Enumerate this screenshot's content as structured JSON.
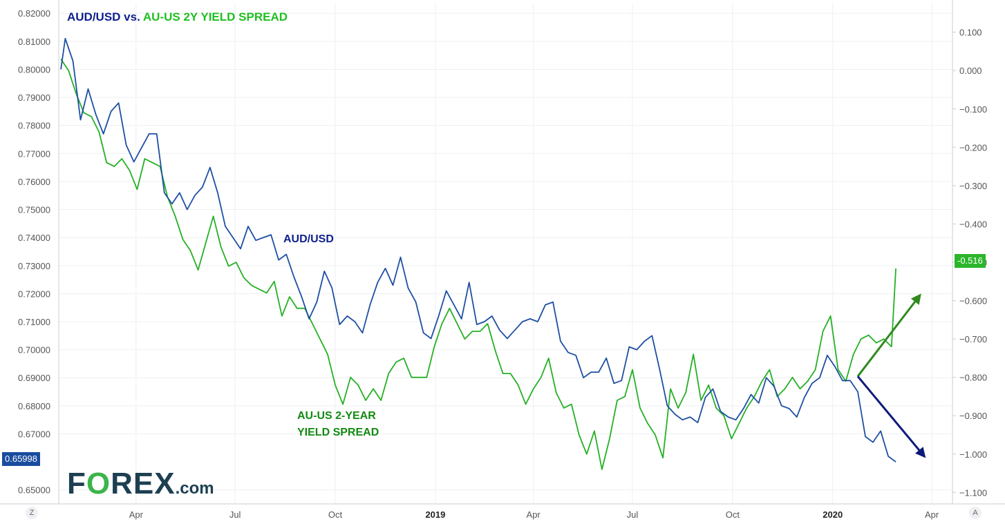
{
  "title": {
    "part1": "AUD/USD",
    "part2": " vs. ",
    "part3": "AU-US 2Y YIELD SPREAD"
  },
  "labels": {
    "aud": "AUD/USD",
    "spread_line1": "AU-US 2-YEAR",
    "spread_line2": "YIELD SPREAD"
  },
  "logo": {
    "part1": "F",
    "part2": "O",
    "part3": "REX",
    "part4": ".com"
  },
  "corners": {
    "left": "Z",
    "right": "A"
  },
  "last_values": {
    "aud": "0.65998",
    "spread": "-0.516"
  },
  "colors": {
    "aud": "#1d4fa3",
    "spread": "#24b024",
    "aud_arrow": "#0d1a7a",
    "spread_arrow": "#2f8a1e",
    "aud_badge": "#1a4c9e",
    "spread_badge": "#2bb52b"
  },
  "chart_data": {
    "type": "line",
    "title": "AUD/USD vs. AU-US 2Y YIELD SPREAD",
    "x_axis": {
      "ticks": [
        {
          "label": "Apr",
          "date": "2018-04-01"
        },
        {
          "label": "Jul",
          "date": "2018-07-01"
        },
        {
          "label": "Oct",
          "date": "2018-10-01"
        },
        {
          "label": "2019",
          "date": "2019-01-01",
          "bold": true
        },
        {
          "label": "Apr",
          "date": "2019-04-01"
        },
        {
          "label": "Jul",
          "date": "2019-07-01"
        },
        {
          "label": "Oct",
          "date": "2019-10-01"
        },
        {
          "label": "2020",
          "date": "2020-01-01",
          "bold": true
        },
        {
          "label": "Apr",
          "date": "2020-04-01"
        }
      ],
      "range": [
        "2018-01-20",
        "2020-04-20"
      ]
    },
    "y_left": {
      "label": "AUD/USD",
      "range": [
        0.645,
        0.8235
      ],
      "ticks": [
        "0.82000",
        "0.81000",
        "0.80000",
        "0.79000",
        "0.78000",
        "0.77000",
        "0.76000",
        "0.75000",
        "0.74000",
        "0.73000",
        "0.72000",
        "0.71000",
        "0.70000",
        "0.69000",
        "0.68000",
        "0.67000",
        "0.65000"
      ]
    },
    "y_right": {
      "label": "AU-US 2Y yield spread",
      "range": [
        -1.13,
        0.175
      ],
      "ticks": [
        "0.100",
        "0.000",
        "-0.100",
        "-0.200",
        "-0.300",
        "-0.400",
        "-0.500",
        "-0.600",
        "-0.700",
        "-0.800",
        "-0.900",
        "-1.000",
        "-1.100"
      ]
    },
    "grid": true,
    "series": [
      {
        "name": "AUD/USD",
        "axis": "left",
        "points": [
          [
            "2018-01-22",
            0.8
          ],
          [
            "2018-01-26",
            0.811
          ],
          [
            "2018-02-02",
            0.803
          ],
          [
            "2018-02-09",
            0.782
          ],
          [
            "2018-02-16",
            0.793
          ],
          [
            "2018-02-23",
            0.784
          ],
          [
            "2018-03-02",
            0.777
          ],
          [
            "2018-03-09",
            0.785
          ],
          [
            "2018-03-16",
            0.788
          ],
          [
            "2018-03-23",
            0.773
          ],
          [
            "2018-03-30",
            0.767
          ],
          [
            "2018-04-06",
            0.772
          ],
          [
            "2018-04-13",
            0.777
          ],
          [
            "2018-04-20",
            0.777
          ],
          [
            "2018-04-27",
            0.756
          ],
          [
            "2018-05-04",
            0.752
          ],
          [
            "2018-05-11",
            0.756
          ],
          [
            "2018-05-18",
            0.75
          ],
          [
            "2018-05-25",
            0.755
          ],
          [
            "2018-06-01",
            0.758
          ],
          [
            "2018-06-08",
            0.765
          ],
          [
            "2018-06-15",
            0.756
          ],
          [
            "2018-06-22",
            0.744
          ],
          [
            "2018-06-29",
            0.74
          ],
          [
            "2018-07-06",
            0.736
          ],
          [
            "2018-07-13",
            0.744
          ],
          [
            "2018-07-20",
            0.739
          ],
          [
            "2018-07-27",
            0.74
          ],
          [
            "2018-08-03",
            0.741
          ],
          [
            "2018-08-10",
            0.732
          ],
          [
            "2018-08-17",
            0.734
          ],
          [
            "2018-08-24",
            0.726
          ],
          [
            "2018-08-31",
            0.719
          ],
          [
            "2018-09-07",
            0.711
          ],
          [
            "2018-09-14",
            0.717
          ],
          [
            "2018-09-21",
            0.728
          ],
          [
            "2018-09-28",
            0.722
          ],
          [
            "2018-10-05",
            0.709
          ],
          [
            "2018-10-12",
            0.712
          ],
          [
            "2018-10-19",
            0.71
          ],
          [
            "2018-10-26",
            0.706
          ],
          [
            "2018-11-02",
            0.716
          ],
          [
            "2018-11-09",
            0.724
          ],
          [
            "2018-11-16",
            0.729
          ],
          [
            "2018-11-23",
            0.723
          ],
          [
            "2018-11-30",
            0.733
          ],
          [
            "2018-12-07",
            0.722
          ],
          [
            "2018-12-14",
            0.717
          ],
          [
            "2018-12-21",
            0.706
          ],
          [
            "2018-12-28",
            0.704
          ],
          [
            "2019-01-04",
            0.712
          ],
          [
            "2019-01-11",
            0.721
          ],
          [
            "2019-01-18",
            0.716
          ],
          [
            "2019-01-25",
            0.711
          ],
          [
            "2019-02-01",
            0.724
          ],
          [
            "2019-02-08",
            0.709
          ],
          [
            "2019-02-15",
            0.71
          ],
          [
            "2019-02-22",
            0.712
          ],
          [
            "2019-03-01",
            0.707
          ],
          [
            "2019-03-08",
            0.704
          ],
          [
            "2019-03-15",
            0.707
          ],
          [
            "2019-03-22",
            0.71
          ],
          [
            "2019-03-29",
            0.711
          ],
          [
            "2019-04-05",
            0.71
          ],
          [
            "2019-04-12",
            0.716
          ],
          [
            "2019-04-19",
            0.717
          ],
          [
            "2019-04-26",
            0.703
          ],
          [
            "2019-05-03",
            0.699
          ],
          [
            "2019-05-10",
            0.698
          ],
          [
            "2019-05-17",
            0.69
          ],
          [
            "2019-05-24",
            0.692
          ],
          [
            "2019-05-31",
            0.692
          ],
          [
            "2019-06-07",
            0.697
          ],
          [
            "2019-06-14",
            0.688
          ],
          [
            "2019-06-21",
            0.689
          ],
          [
            "2019-06-28",
            0.701
          ],
          [
            "2019-07-05",
            0.7
          ],
          [
            "2019-07-12",
            0.703
          ],
          [
            "2019-07-19",
            0.705
          ],
          [
            "2019-07-26",
            0.693
          ],
          [
            "2019-08-02",
            0.68
          ],
          [
            "2019-08-09",
            0.677
          ],
          [
            "2019-08-16",
            0.675
          ],
          [
            "2019-08-23",
            0.676
          ],
          [
            "2019-08-30",
            0.674
          ],
          [
            "2019-09-06",
            0.683
          ],
          [
            "2019-09-13",
            0.686
          ],
          [
            "2019-09-20",
            0.678
          ],
          [
            "2019-09-27",
            0.676
          ],
          [
            "2019-10-04",
            0.675
          ],
          [
            "2019-10-11",
            0.679
          ],
          [
            "2019-10-18",
            0.684
          ],
          [
            "2019-10-25",
            0.681
          ],
          [
            "2019-11-01",
            0.69
          ],
          [
            "2019-11-08",
            0.687
          ],
          [
            "2019-11-15",
            0.68
          ],
          [
            "2019-11-22",
            0.679
          ],
          [
            "2019-11-29",
            0.676
          ],
          [
            "2019-12-06",
            0.683
          ],
          [
            "2019-12-13",
            0.688
          ],
          [
            "2019-12-20",
            0.69
          ],
          [
            "2019-12-27",
            0.698
          ],
          [
            "2020-01-03",
            0.694
          ],
          [
            "2020-01-10",
            0.689
          ],
          [
            "2020-01-17",
            0.689
          ],
          [
            "2020-01-24",
            0.685
          ],
          [
            "2020-01-31",
            0.669
          ],
          [
            "2020-02-07",
            0.667
          ],
          [
            "2020-02-14",
            0.671
          ],
          [
            "2020-02-21",
            0.662
          ],
          [
            "2020-02-28",
            0.65998
          ]
        ]
      },
      {
        "name": "AU-US 2Y yield spread",
        "axis": "right",
        "points": [
          [
            "2018-01-22",
            0.03
          ],
          [
            "2018-01-29",
            0.0
          ],
          [
            "2018-02-05",
            -0.06
          ],
          [
            "2018-02-12",
            -0.11
          ],
          [
            "2018-02-19",
            -0.12
          ],
          [
            "2018-02-26",
            -0.16
          ],
          [
            "2018-03-05",
            -0.24
          ],
          [
            "2018-03-12",
            -0.25
          ],
          [
            "2018-03-19",
            -0.23
          ],
          [
            "2018-03-26",
            -0.26
          ],
          [
            "2018-04-02",
            -0.31
          ],
          [
            "2018-04-09",
            -0.23
          ],
          [
            "2018-04-16",
            -0.24
          ],
          [
            "2018-04-23",
            -0.25
          ],
          [
            "2018-04-30",
            -0.33
          ],
          [
            "2018-05-07",
            -0.38
          ],
          [
            "2018-05-14",
            -0.44
          ],
          [
            "2018-05-21",
            -0.47
          ],
          [
            "2018-05-28",
            -0.52
          ],
          [
            "2018-06-04",
            -0.45
          ],
          [
            "2018-06-11",
            -0.38
          ],
          [
            "2018-06-18",
            -0.46
          ],
          [
            "2018-06-25",
            -0.51
          ],
          [
            "2018-07-02",
            -0.5
          ],
          [
            "2018-07-09",
            -0.54
          ],
          [
            "2018-07-16",
            -0.56
          ],
          [
            "2018-07-23",
            -0.57
          ],
          [
            "2018-07-30",
            -0.58
          ],
          [
            "2018-08-06",
            -0.55
          ],
          [
            "2018-08-13",
            -0.64
          ],
          [
            "2018-08-20",
            -0.59
          ],
          [
            "2018-08-27",
            -0.62
          ],
          [
            "2018-09-03",
            -0.62
          ],
          [
            "2018-09-10",
            -0.66
          ],
          [
            "2018-09-17",
            -0.7
          ],
          [
            "2018-09-24",
            -0.74
          ],
          [
            "2018-10-01",
            -0.82
          ],
          [
            "2018-10-08",
            -0.87
          ],
          [
            "2018-10-15",
            -0.8
          ],
          [
            "2018-10-22",
            -0.82
          ],
          [
            "2018-10-29",
            -0.86
          ],
          [
            "2018-11-05",
            -0.83
          ],
          [
            "2018-11-12",
            -0.86
          ],
          [
            "2018-11-19",
            -0.79
          ],
          [
            "2018-11-26",
            -0.76
          ],
          [
            "2018-12-03",
            -0.75
          ],
          [
            "2018-12-10",
            -0.8
          ],
          [
            "2018-12-17",
            -0.8
          ],
          [
            "2018-12-24",
            -0.8
          ],
          [
            "2018-12-31",
            -0.72
          ],
          [
            "2019-01-07",
            -0.66
          ],
          [
            "2019-01-14",
            -0.62
          ],
          [
            "2019-01-21",
            -0.66
          ],
          [
            "2019-01-28",
            -0.7
          ],
          [
            "2019-02-04",
            -0.68
          ],
          [
            "2019-02-11",
            -0.68
          ],
          [
            "2019-02-18",
            -0.66
          ],
          [
            "2019-02-25",
            -0.73
          ],
          [
            "2019-03-04",
            -0.79
          ],
          [
            "2019-03-11",
            -0.79
          ],
          [
            "2019-03-18",
            -0.82
          ],
          [
            "2019-03-25",
            -0.87
          ],
          [
            "2019-04-01",
            -0.83
          ],
          [
            "2019-04-08",
            -0.8
          ],
          [
            "2019-04-15",
            -0.75
          ],
          [
            "2019-04-22",
            -0.84
          ],
          [
            "2019-04-29",
            -0.88
          ],
          [
            "2019-05-06",
            -0.87
          ],
          [
            "2019-05-13",
            -0.95
          ],
          [
            "2019-05-20",
            -1.0
          ],
          [
            "2019-05-27",
            -0.94
          ],
          [
            "2019-06-03",
            -1.04
          ],
          [
            "2019-06-10",
            -0.96
          ],
          [
            "2019-06-17",
            -0.86
          ],
          [
            "2019-06-24",
            -0.85
          ],
          [
            "2019-07-01",
            -0.78
          ],
          [
            "2019-07-08",
            -0.88
          ],
          [
            "2019-07-15",
            -0.92
          ],
          [
            "2019-07-22",
            -0.95
          ],
          [
            "2019-07-29",
            -1.01
          ],
          [
            "2019-08-05",
            -0.83
          ],
          [
            "2019-08-12",
            -0.88
          ],
          [
            "2019-08-19",
            -0.84
          ],
          [
            "2019-08-26",
            -0.74
          ],
          [
            "2019-09-02",
            -0.86
          ],
          [
            "2019-09-09",
            -0.82
          ],
          [
            "2019-09-16",
            -0.88
          ],
          [
            "2019-09-23",
            -0.9
          ],
          [
            "2019-09-30",
            -0.96
          ],
          [
            "2019-10-07",
            -0.92
          ],
          [
            "2019-10-14",
            -0.88
          ],
          [
            "2019-10-21",
            -0.85
          ],
          [
            "2019-10-28",
            -0.81
          ],
          [
            "2019-11-04",
            -0.78
          ],
          [
            "2019-11-11",
            -0.85
          ],
          [
            "2019-11-18",
            -0.83
          ],
          [
            "2019-11-25",
            -0.8
          ],
          [
            "2019-12-02",
            -0.83
          ],
          [
            "2019-12-09",
            -0.81
          ],
          [
            "2019-12-16",
            -0.78
          ],
          [
            "2019-12-23",
            -0.68
          ],
          [
            "2019-12-30",
            -0.64
          ],
          [
            "2020-01-06",
            -0.78
          ],
          [
            "2020-01-13",
            -0.81
          ],
          [
            "2020-01-20",
            -0.74
          ],
          [
            "2020-01-27",
            -0.7
          ],
          [
            "2020-02-03",
            -0.69
          ],
          [
            "2020-02-10",
            -0.71
          ],
          [
            "2020-02-17",
            -0.7
          ],
          [
            "2020-02-24",
            -0.72
          ],
          [
            "2020-02-28",
            -0.516
          ]
        ]
      }
    ]
  }
}
